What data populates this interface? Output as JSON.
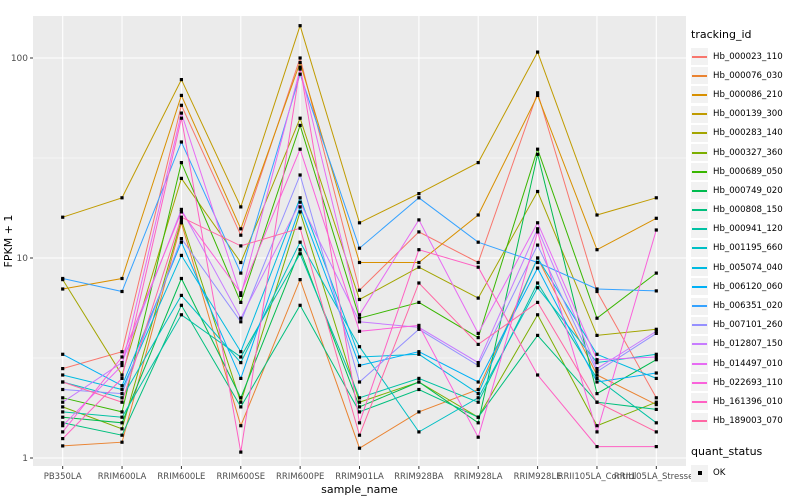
{
  "chart_data": {
    "type": "line",
    "xlabel": "sample_name",
    "ylabel": "FPKM + 1",
    "y_scale": "log10",
    "y_ticks": [
      1,
      10,
      100
    ],
    "ylim": [
      1,
      160
    ],
    "grid": true,
    "legend_position": "right",
    "panel_bg": "#EBEBEB",
    "grid_color": "#FFFFFF",
    "tick_label_color": "#4D4D4D",
    "point_color": "#000000",
    "legend_title": "tracking_id",
    "x_categories": [
      "PB350LA",
      "RRIM600LA",
      "RRIM600LE",
      "RRIM600SE",
      "RRIM600PE",
      "RRIM901LA",
      "RRIM928BA",
      "RRIM928LA",
      "RRIM928LE",
      "RRII105LA_Control",
      "RRII105LA_Stressed"
    ],
    "series": [
      {
        "name": "Hb_000023_110",
        "color": "#F8766D",
        "values": [
          2.8,
          3.4,
          58,
          13,
          100,
          6.9,
          13.5,
          9.5,
          67,
          6.8,
          2.0
        ]
      },
      {
        "name": "Hb_000076_030",
        "color": "#EA8331",
        "values": [
          1.15,
          1.2,
          15,
          1.45,
          7.8,
          1.12,
          1.7,
          2.2,
          10,
          2.6,
          1.85
        ]
      },
      {
        "name": "Hb_000086_210",
        "color": "#D89000",
        "values": [
          7.0,
          7.9,
          65,
          14,
          95,
          9.5,
          9.5,
          16.4,
          65,
          11,
          15.8
        ]
      },
      {
        "name": "Hb_000139_300",
        "color": "#C09B00",
        "values": [
          16,
          20,
          78,
          18,
          145,
          15,
          21,
          30,
          107,
          16.4,
          20
        ]
      },
      {
        "name": "Hb_000283_140",
        "color": "#A3A500",
        "values": [
          7.8,
          2.6,
          25,
          9.5,
          50,
          6.2,
          9.0,
          6.3,
          21.5,
          4.1,
          4.4
        ]
      },
      {
        "name": "Hb_000327_360",
        "color": "#7CAE00",
        "values": [
          1.8,
          1.4,
          15.5,
          1.9,
          17,
          1.9,
          2.4,
          1.6,
          5.2,
          1.45,
          1.9
        ]
      },
      {
        "name": "Hb_000689_050",
        "color": "#39B600",
        "values": [
          2.0,
          1.7,
          30,
          6.0,
          46,
          5.0,
          6.0,
          4.0,
          35,
          5.0,
          8.4
        ]
      },
      {
        "name": "Hb_000749_020",
        "color": "#00BB4E",
        "values": [
          1.6,
          1.5,
          7.9,
          2.0,
          11,
          1.8,
          2.4,
          1.5,
          33,
          2.1,
          3.1
        ]
      },
      {
        "name": "Hb_000808_150",
        "color": "#00BF7D",
        "values": [
          1.5,
          1.3,
          5.8,
          1.8,
          5.8,
          1.7,
          2.2,
          1.6,
          4.1,
          1.9,
          1.75
        ]
      },
      {
        "name": "Hb_000941_120",
        "color": "#00C1A3",
        "values": [
          1.7,
          1.6,
          5.2,
          3.2,
          10.5,
          2.0,
          2.5,
          1.9,
          7.5,
          2.5,
          1.5
        ]
      },
      {
        "name": "Hb_001195_660",
        "color": "#00BFC4",
        "values": [
          2.4,
          2.0,
          6.5,
          3.0,
          12,
          3.6,
          1.35,
          2.0,
          7.1,
          3.0,
          3.3
        ]
      },
      {
        "name": "Hb_005074_040",
        "color": "#00BAE0",
        "values": [
          2.6,
          2.2,
          10.3,
          3.4,
          20,
          3.2,
          3.3,
          2.1,
          10,
          3.3,
          2.5
        ]
      },
      {
        "name": "Hb_006120_060",
        "color": "#00B0F6",
        "values": [
          3.3,
          2.3,
          12,
          2.5,
          18,
          2.9,
          3.4,
          2.4,
          8.9,
          2.4,
          2.66
        ]
      },
      {
        "name": "Hb_006351_020",
        "color": "#35A2FF",
        "values": [
          7.9,
          6.8,
          38,
          8.4,
          83,
          11.2,
          20,
          12,
          9.5,
          7.0,
          6.85
        ]
      },
      {
        "name": "Hb_007101_260",
        "color": "#9590FF",
        "values": [
          2.2,
          2.1,
          12.5,
          4.8,
          26,
          2.4,
          4.4,
          2.9,
          11.6,
          2.7,
          4.2
        ]
      },
      {
        "name": "Hb_012807_150",
        "color": "#C77CFF",
        "values": [
          1.9,
          3.0,
          17.5,
          5.0,
          19,
          4.8,
          4.5,
          3.0,
          14,
          2.8,
          4.3
        ]
      },
      {
        "name": "Hb_014497_010",
        "color": "#E76BF3",
        "values": [
          1.45,
          2.9,
          53,
          6.5,
          88,
          5.2,
          15.5,
          4.2,
          15,
          3.1,
          3.2
        ]
      },
      {
        "name": "Hb_022693_110",
        "color": "#FA62DB",
        "values": [
          1.35,
          3.2,
          17,
          6.7,
          35,
          4.3,
          4.6,
          1.27,
          13.5,
          1.35,
          13.8
        ]
      },
      {
        "name": "Hb_161396_010",
        "color": "#FF61C3",
        "values": [
          1.25,
          2.5,
          50,
          1.07,
          90,
          1.5,
          11,
          9.0,
          2.6,
          1.14,
          1.14
        ]
      },
      {
        "name": "Hb_189003_070",
        "color": "#FF67A4",
        "values": [
          2.4,
          1.9,
          16,
          11.5,
          14.1,
          1.3,
          7.5,
          3.7,
          6.0,
          1.9,
          1.35
        ]
      }
    ],
    "quant_legend": {
      "title": "quant_status",
      "items": [
        {
          "label": "OK",
          "marker": "black-square"
        }
      ]
    }
  }
}
